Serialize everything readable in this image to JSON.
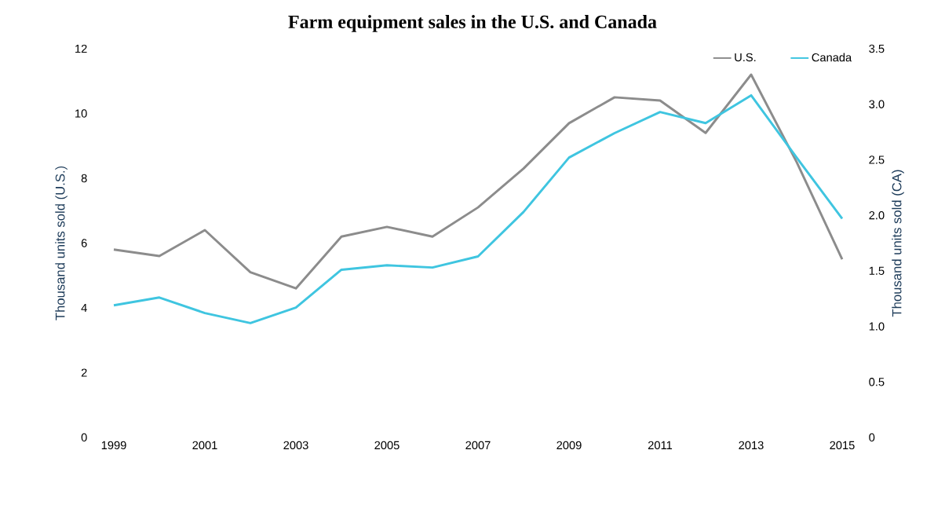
{
  "chart_data": {
    "type": "line",
    "title": "Farm equipment sales in the U.S. and Canada",
    "categories": [
      "1999",
      null,
      "2001",
      null,
      "2003",
      null,
      "2005",
      null,
      "2007",
      null,
      "2009",
      null,
      "2011",
      null,
      "2013",
      null,
      "2015"
    ],
    "ylabel": "Thousand units sold (U.S.)",
    "y2label": "Thousand units sold (CA)",
    "ylim": [
      0,
      12
    ],
    "yticks": [
      0,
      2,
      4,
      6,
      8,
      10,
      12
    ],
    "y2lim": [
      0,
      3.5
    ],
    "y2ticks": [
      {
        "value": 0,
        "label": "0"
      },
      {
        "value": 0.5,
        "label": "0.5"
      },
      {
        "value": 1,
        "label": "1.0"
      },
      {
        "value": 1.5,
        "label": "1.5"
      },
      {
        "value": 2,
        "label": "2.0"
      },
      {
        "value": 2.5,
        "label": "2.5"
      },
      {
        "value": 3,
        "label": "3.0"
      },
      {
        "value": 3.5,
        "label": "3.5"
      }
    ],
    "legend": "top right",
    "series": [
      {
        "name": "U.S.",
        "color": "#8c8c8c",
        "values": [
          5.8,
          5.6,
          6.4,
          5.1,
          4.6,
          6.2,
          6.5,
          6.2,
          7.1,
          8.3,
          9.7,
          10.5,
          10.4,
          9.4,
          11.2,
          8.5,
          5.5
        ]
      },
      {
        "name": "Canada",
        "color": "#3fc5e0",
        "axis": "y2",
        "values": [
          1.19,
          1.26,
          1.12,
          1.03,
          1.17,
          1.51,
          1.55,
          1.53,
          1.63,
          2.03,
          2.52,
          2.74,
          2.93,
          2.83,
          3.08,
          2.52,
          1.97
        ]
      }
    ]
  }
}
